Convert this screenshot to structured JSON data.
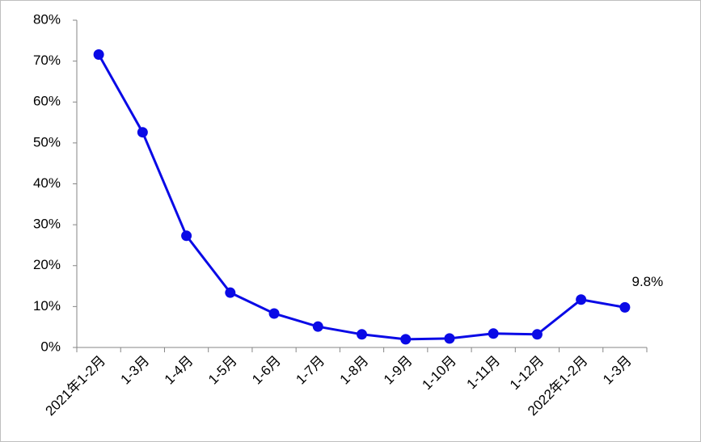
{
  "chart_data": {
    "type": "line",
    "categories": [
      "2021年1-2月",
      "1-3月",
      "1-4月",
      "1-5月",
      "1-6月",
      "1-7月",
      "1-8月",
      "1-9月",
      "1-10月",
      "1-11月",
      "1-12月",
      "2022年1-2月",
      "1-3月"
    ],
    "series": [
      {
        "color": "#0a0ae6",
        "values": [
          71.6,
          52.6,
          27.3,
          13.4,
          8.3,
          5.1,
          3.2,
          2.0,
          2.2,
          3.4,
          3.2,
          11.7,
          9.8
        ],
        "value_labels": [
          null,
          null,
          null,
          null,
          null,
          null,
          null,
          null,
          null,
          null,
          null,
          null,
          "9.8%"
        ]
      }
    ],
    "ylim": [
      0,
      80
    ],
    "yticks": [
      {
        "value": 0,
        "label": "0%"
      },
      {
        "value": 10,
        "label": "10%"
      },
      {
        "value": 20,
        "label": "20%"
      },
      {
        "value": 30,
        "label": "30%"
      },
      {
        "value": 40,
        "label": "40%"
      },
      {
        "value": 50,
        "label": "50%"
      },
      {
        "value": 60,
        "label": "60%"
      },
      {
        "value": 70,
        "label": "70%"
      },
      {
        "value": 80,
        "label": "80%"
      }
    ],
    "grid": false
  }
}
